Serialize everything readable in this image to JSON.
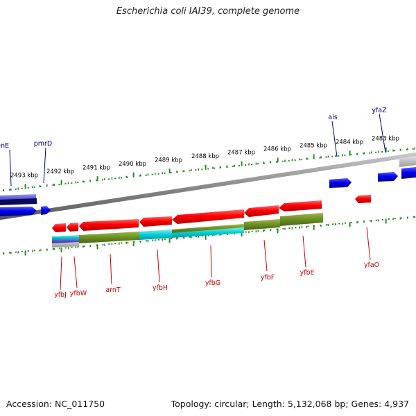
{
  "title": "Escherichia coli IAI39, complete genome",
  "footer": {
    "accession": "Accession: NC_011750",
    "stats": "Topology: circular; Length: 5,132,068 bp; Genes: 4,937"
  },
  "ruler": {
    "labels": [
      "2493 kbp",
      "2492 kbp",
      "2491 kbp",
      "2490 kbp",
      "2489 kbp",
      "2488 kbp",
      "2487 kbp",
      "2486 kbp",
      "2485 kbp",
      "2484 kbp",
      "2483 kbp"
    ]
  },
  "genes": {
    "forward": [
      "menE",
      "pmrD",
      "ais",
      "yfaZ"
    ],
    "reverse": [
      "yfbJ",
      "yfbW",
      "arnT",
      "yfbH",
      "yfbG",
      "yfbF",
      "yfbE",
      "yfaO"
    ]
  },
  "colors": {
    "forward_label": "#00008b",
    "reverse_label": "#cc0000",
    "forward_gene": "#0000ee",
    "reverse_gene": "#ee0000",
    "backbone": "#808080",
    "tick": "#228b22",
    "cog_olive": "#6b8e23",
    "cog_cyan": "#00ced1"
  }
}
